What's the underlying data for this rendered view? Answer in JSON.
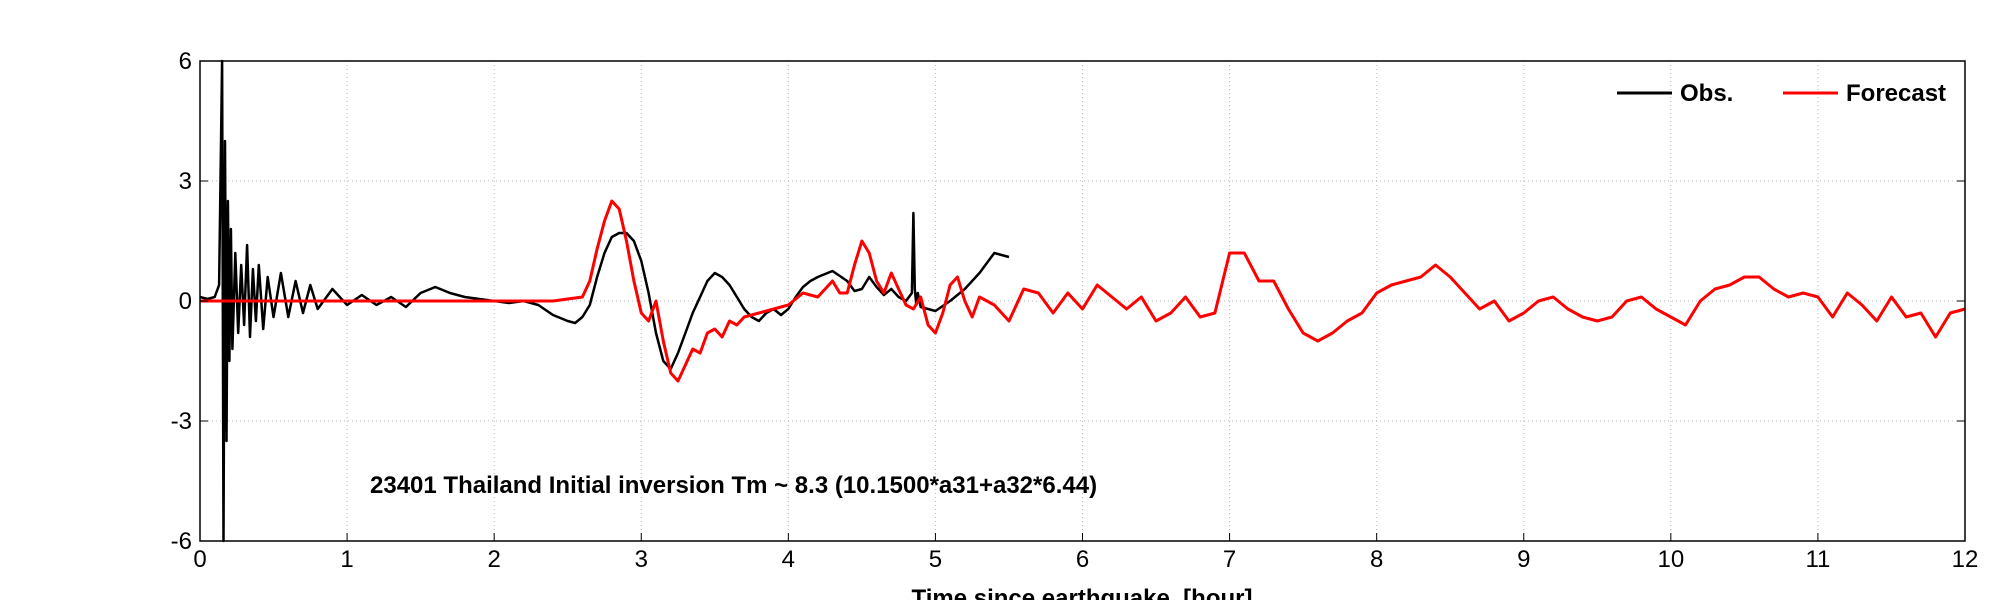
{
  "chart_data": {
    "type": "line",
    "title": "",
    "xlabel": "Time since earthquake, [hour]",
    "ylabel": "",
    "xlim": [
      0,
      12
    ],
    "ylim": [
      -6,
      6
    ],
    "x_ticks": [
      0,
      1,
      2,
      3,
      4,
      5,
      6,
      7,
      8,
      9,
      10,
      11,
      12
    ],
    "y_ticks": [
      -6,
      -3,
      0,
      3,
      6
    ],
    "grid": true,
    "legend": {
      "position": "top-right",
      "entries": [
        "Obs.",
        "Forecast"
      ]
    },
    "annotation": "23401  Thailand  Initial inversion Tm ~ 8.3 (10.1500*a31+a32*6.44)",
    "colors": {
      "obs": "#000000",
      "forecast": "#ff0000"
    },
    "series": [
      {
        "name": "Obs.",
        "x": [
          0,
          0.05,
          0.1,
          0.13,
          0.15,
          0.16,
          0.17,
          0.18,
          0.19,
          0.2,
          0.21,
          0.22,
          0.24,
          0.26,
          0.28,
          0.3,
          0.32,
          0.34,
          0.36,
          0.38,
          0.4,
          0.43,
          0.46,
          0.5,
          0.55,
          0.6,
          0.65,
          0.7,
          0.75,
          0.8,
          0.9,
          1.0,
          1.1,
          1.2,
          1.3,
          1.4,
          1.5,
          1.6,
          1.7,
          1.8,
          1.9,
          2.0,
          2.1,
          2.2,
          2.3,
          2.4,
          2.5,
          2.55,
          2.6,
          2.65,
          2.7,
          2.75,
          2.8,
          2.85,
          2.9,
          2.95,
          3.0,
          3.05,
          3.1,
          3.15,
          3.2,
          3.25,
          3.3,
          3.35,
          3.4,
          3.45,
          3.5,
          3.55,
          3.6,
          3.65,
          3.7,
          3.75,
          3.8,
          3.85,
          3.9,
          3.95,
          4.0,
          4.05,
          4.1,
          4.15,
          4.2,
          4.3,
          4.4,
          4.45,
          4.5,
          4.55,
          4.6,
          4.65,
          4.7,
          4.75,
          4.8,
          4.84,
          4.85,
          4.86,
          4.87,
          4.88,
          4.9,
          5.0,
          5.1,
          5.2,
          5.3,
          5.4,
          5.5
        ],
        "y": [
          0.1,
          0.05,
          0.1,
          0.4,
          6.0,
          -6.0,
          4.0,
          -3.5,
          2.5,
          -1.5,
          1.8,
          -1.2,
          1.2,
          -0.8,
          0.9,
          -0.6,
          1.4,
          -0.9,
          0.8,
          -0.5,
          0.9,
          -0.7,
          0.6,
          -0.4,
          0.7,
          -0.4,
          0.5,
          -0.3,
          0.4,
          -0.2,
          0.3,
          -0.1,
          0.15,
          -0.1,
          0.1,
          -0.15,
          0.2,
          0.35,
          0.2,
          0.1,
          0.05,
          0.0,
          -0.05,
          0.0,
          -0.1,
          -0.35,
          -0.5,
          -0.55,
          -0.4,
          -0.1,
          0.6,
          1.2,
          1.6,
          1.7,
          1.7,
          1.5,
          1.0,
          0.2,
          -0.8,
          -1.5,
          -1.7,
          -1.3,
          -0.8,
          -0.3,
          0.1,
          0.5,
          0.7,
          0.6,
          0.4,
          0.1,
          -0.2,
          -0.4,
          -0.5,
          -0.3,
          -0.2,
          -0.35,
          -0.2,
          0.1,
          0.35,
          0.5,
          0.6,
          0.75,
          0.5,
          0.25,
          0.3,
          0.6,
          0.35,
          0.15,
          0.3,
          0.1,
          0.0,
          0.2,
          2.2,
          0.3,
          -0.1,
          0.2,
          -0.15,
          -0.25,
          0.0,
          0.3,
          0.7,
          1.2,
          1.1
        ]
      },
      {
        "name": "Forecast",
        "x": [
          0,
          0.5,
          1.0,
          1.5,
          2.0,
          2.4,
          2.6,
          2.65,
          2.7,
          2.75,
          2.8,
          2.85,
          2.9,
          2.95,
          3.0,
          3.05,
          3.1,
          3.15,
          3.2,
          3.25,
          3.3,
          3.35,
          3.4,
          3.45,
          3.5,
          3.55,
          3.6,
          3.65,
          3.7,
          3.8,
          3.9,
          4.0,
          4.1,
          4.2,
          4.3,
          4.35,
          4.4,
          4.45,
          4.5,
          4.55,
          4.6,
          4.65,
          4.7,
          4.75,
          4.8,
          4.85,
          4.9,
          4.95,
          5.0,
          5.05,
          5.1,
          5.15,
          5.2,
          5.25,
          5.3,
          5.4,
          5.5,
          5.6,
          5.7,
          5.8,
          5.9,
          6.0,
          6.1,
          6.2,
          6.3,
          6.4,
          6.5,
          6.6,
          6.7,
          6.8,
          6.9,
          7.0,
          7.1,
          7.2,
          7.3,
          7.4,
          7.5,
          7.6,
          7.7,
          7.8,
          7.9,
          8.0,
          8.1,
          8.2,
          8.3,
          8.4,
          8.5,
          8.6,
          8.7,
          8.8,
          8.9,
          9.0,
          9.1,
          9.2,
          9.3,
          9.4,
          9.5,
          9.6,
          9.7,
          9.8,
          9.9,
          10.0,
          10.1,
          10.2,
          10.3,
          10.4,
          10.5,
          10.6,
          10.7,
          10.8,
          10.9,
          11.0,
          11.1,
          11.2,
          11.3,
          11.4,
          11.5,
          11.6,
          11.7,
          11.8,
          11.9,
          12.0
        ],
        "y": [
          0,
          0,
          0,
          0,
          0,
          0,
          0.1,
          0.5,
          1.3,
          2.0,
          2.5,
          2.3,
          1.5,
          0.5,
          -0.3,
          -0.5,
          0.0,
          -1.0,
          -1.8,
          -2.0,
          -1.6,
          -1.2,
          -1.3,
          -0.8,
          -0.7,
          -0.9,
          -0.5,
          -0.6,
          -0.4,
          -0.3,
          -0.2,
          -0.1,
          0.2,
          0.1,
          0.5,
          0.2,
          0.2,
          0.9,
          1.5,
          1.2,
          0.5,
          0.2,
          0.7,
          0.3,
          -0.1,
          -0.2,
          0.1,
          -0.6,
          -0.8,
          -0.3,
          0.4,
          0.6,
          0.0,
          -0.4,
          0.1,
          -0.1,
          -0.5,
          0.3,
          0.2,
          -0.3,
          0.2,
          -0.2,
          0.4,
          0.1,
          -0.2,
          0.1,
          -0.5,
          -0.3,
          0.1,
          -0.4,
          -0.3,
          1.2,
          1.2,
          0.5,
          0.5,
          -0.2,
          -0.8,
          -1.0,
          -0.8,
          -0.5,
          -0.3,
          0.2,
          0.4,
          0.5,
          0.6,
          0.9,
          0.6,
          0.2,
          -0.2,
          0.0,
          -0.5,
          -0.3,
          0.0,
          0.1,
          -0.2,
          -0.4,
          -0.5,
          -0.4,
          0.0,
          0.1,
          -0.2,
          -0.4,
          -0.6,
          0.0,
          0.3,
          0.4,
          0.6,
          0.6,
          0.3,
          0.1,
          0.2,
          0.1,
          -0.4,
          0.2,
          -0.1,
          -0.5,
          0.1,
          -0.4,
          -0.3,
          -0.9,
          -0.3,
          -0.2
        ]
      }
    ]
  }
}
